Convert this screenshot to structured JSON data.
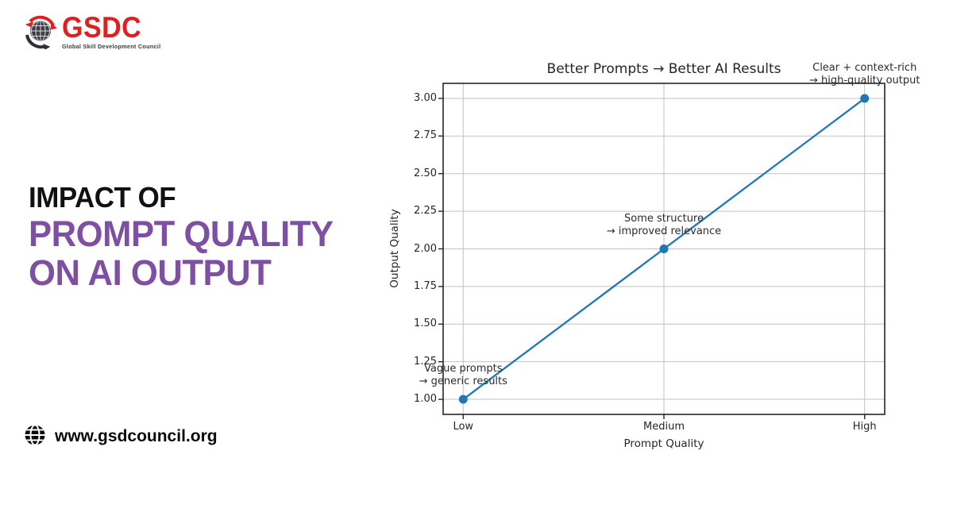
{
  "logo": {
    "icon": "globe-arrows-icon",
    "text": "GSDC",
    "tagline": "Global Skill Development Council",
    "color": "#e0201f",
    "tagline_color": "#3a3a3a"
  },
  "headline": {
    "line1": "IMPACT OF",
    "line2": "PROMPT QUALITY",
    "line3": "ON AI OUTPUT",
    "line1_color": "#111111",
    "accent_color": "#7e4fa3"
  },
  "footer": {
    "icon": "globe-icon",
    "website": "www.gsdcouncil.org"
  },
  "chart_data": {
    "type": "line",
    "title": "Better Prompts → Better AI Results",
    "xlabel": "Prompt Quality",
    "ylabel": "Output Quality",
    "categories": [
      "Low",
      "Medium",
      "High"
    ],
    "series": [
      {
        "name": "Output Quality",
        "values": [
          1.0,
          2.0,
          3.0
        ]
      }
    ],
    "yticks": [
      {
        "value": 1.0,
        "label": "1.00"
      },
      {
        "value": 1.25,
        "label": "1.25"
      },
      {
        "value": 1.5,
        "label": "1.50"
      },
      {
        "value": 1.75,
        "label": "1.75"
      },
      {
        "value": 2.0,
        "label": "2.00"
      },
      {
        "value": 2.25,
        "label": "2.25"
      },
      {
        "value": 2.5,
        "label": "2.50"
      },
      {
        "value": 2.75,
        "label": "2.75"
      },
      {
        "value": 3.0,
        "label": "3.00"
      }
    ],
    "xlim": [
      -0.1,
      2.1
    ],
    "ylim": [
      0.9,
      3.1
    ],
    "grid": true,
    "legend": "none",
    "line_color": "#1f77b4",
    "marker_color": "#1f77b4",
    "grid_color": "#c2c2c2",
    "axis_color": "#262626",
    "annotations": [
      {
        "x": 0,
        "y": 1.0,
        "lines": [
          "Vague prompts",
          "→ generic results"
        ]
      },
      {
        "x": 1,
        "y": 2.0,
        "lines": [
          "Some structure",
          "→ improved relevance"
        ]
      },
      {
        "x": 2,
        "y": 3.0,
        "lines": [
          "Clear + context-rich",
          "→ high-quality output"
        ]
      }
    ]
  }
}
